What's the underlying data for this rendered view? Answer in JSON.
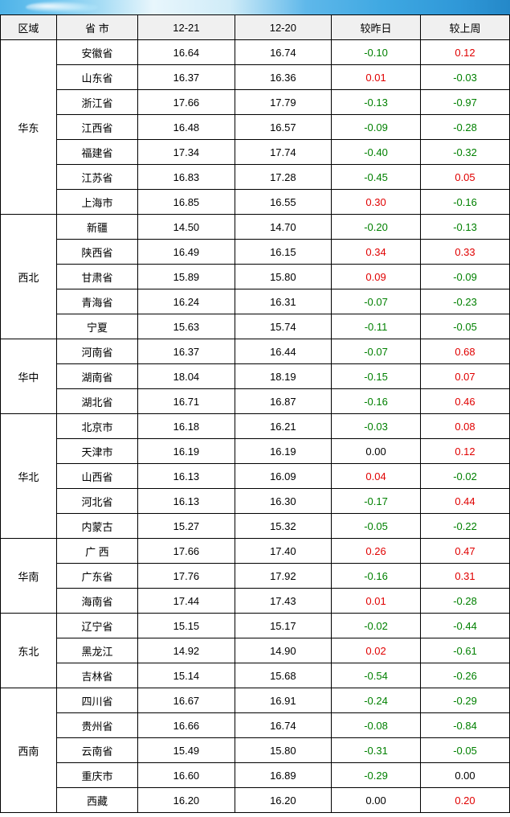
{
  "header_bg": "#f0f0f0",
  "border_color": "#000000",
  "neg_color": "#008000",
  "pos_color": "#e00000",
  "columns": [
    "区域",
    "省 市",
    "12-21",
    "12-20",
    "较昨日",
    "较上周"
  ],
  "regions": [
    {
      "name": "华东",
      "rows": [
        {
          "province": "安徽省",
          "d1": "16.64",
          "d2": "16.74",
          "delta_day": "-0.10",
          "delta_week": "0.12"
        },
        {
          "province": "山东省",
          "d1": "16.37",
          "d2": "16.36",
          "delta_day": "0.01",
          "delta_week": "-0.03"
        },
        {
          "province": "浙江省",
          "d1": "17.66",
          "d2": "17.79",
          "delta_day": "-0.13",
          "delta_week": "-0.97"
        },
        {
          "province": "江西省",
          "d1": "16.48",
          "d2": "16.57",
          "delta_day": "-0.09",
          "delta_week": "-0.28"
        },
        {
          "province": "福建省",
          "d1": "17.34",
          "d2": "17.74",
          "delta_day": "-0.40",
          "delta_week": "-0.32"
        },
        {
          "province": "江苏省",
          "d1": "16.83",
          "d2": "17.28",
          "delta_day": "-0.45",
          "delta_week": "0.05"
        },
        {
          "province": "上海市",
          "d1": "16.85",
          "d2": "16.55",
          "delta_day": "0.30",
          "delta_week": "-0.16"
        }
      ]
    },
    {
      "name": "西北",
      "rows": [
        {
          "province": "新疆",
          "d1": "14.50",
          "d2": "14.70",
          "delta_day": "-0.20",
          "delta_week": "-0.13"
        },
        {
          "province": "陕西省",
          "d1": "16.49",
          "d2": "16.15",
          "delta_day": "0.34",
          "delta_week": "0.33"
        },
        {
          "province": "甘肃省",
          "d1": "15.89",
          "d2": "15.80",
          "delta_day": "0.09",
          "delta_week": "-0.09"
        },
        {
          "province": "青海省",
          "d1": "16.24",
          "d2": "16.31",
          "delta_day": "-0.07",
          "delta_week": "-0.23"
        },
        {
          "province": "宁夏",
          "d1": "15.63",
          "d2": "15.74",
          "delta_day": "-0.11",
          "delta_week": "-0.05"
        }
      ]
    },
    {
      "name": "华中",
      "rows": [
        {
          "province": "河南省",
          "d1": "16.37",
          "d2": "16.44",
          "delta_day": "-0.07",
          "delta_week": "0.68"
        },
        {
          "province": "湖南省",
          "d1": "18.04",
          "d2": "18.19",
          "delta_day": "-0.15",
          "delta_week": "0.07"
        },
        {
          "province": "湖北省",
          "d1": "16.71",
          "d2": "16.87",
          "delta_day": "-0.16",
          "delta_week": "0.46"
        }
      ]
    },
    {
      "name": "华北",
      "rows": [
        {
          "province": "北京市",
          "d1": "16.18",
          "d2": "16.21",
          "delta_day": "-0.03",
          "delta_week": "0.08"
        },
        {
          "province": "天津市",
          "d1": "16.19",
          "d2": "16.19",
          "delta_day": "0.00",
          "delta_week": "0.12"
        },
        {
          "province": "山西省",
          "d1": "16.13",
          "d2": "16.09",
          "delta_day": "0.04",
          "delta_week": "-0.02"
        },
        {
          "province": "河北省",
          "d1": "16.13",
          "d2": "16.30",
          "delta_day": "-0.17",
          "delta_week": "0.44"
        },
        {
          "province": "内蒙古",
          "d1": "15.27",
          "d2": "15.32",
          "delta_day": "-0.05",
          "delta_week": "-0.22"
        }
      ]
    },
    {
      "name": "华南",
      "rows": [
        {
          "province": "广 西",
          "d1": "17.66",
          "d2": "17.40",
          "delta_day": "0.26",
          "delta_week": "0.47"
        },
        {
          "province": "广东省",
          "d1": "17.76",
          "d2": "17.92",
          "delta_day": "-0.16",
          "delta_week": "0.31"
        },
        {
          "province": "海南省",
          "d1": "17.44",
          "d2": "17.43",
          "delta_day": "0.01",
          "delta_week": "-0.28"
        }
      ]
    },
    {
      "name": "东北",
      "rows": [
        {
          "province": "辽宁省",
          "d1": "15.15",
          "d2": "15.17",
          "delta_day": "-0.02",
          "delta_week": "-0.44"
        },
        {
          "province": "黑龙江",
          "d1": "14.92",
          "d2": "14.90",
          "delta_day": "0.02",
          "delta_week": "-0.61"
        },
        {
          "province": "吉林省",
          "d1": "15.14",
          "d2": "15.68",
          "delta_day": "-0.54",
          "delta_week": "-0.26"
        }
      ]
    },
    {
      "name": "西南",
      "rows": [
        {
          "province": "四川省",
          "d1": "16.67",
          "d2": "16.91",
          "delta_day": "-0.24",
          "delta_week": "-0.29"
        },
        {
          "province": "贵州省",
          "d1": "16.66",
          "d2": "16.74",
          "delta_day": "-0.08",
          "delta_week": "-0.84"
        },
        {
          "province": "云南省",
          "d1": "15.49",
          "d2": "15.80",
          "delta_day": "-0.31",
          "delta_week": "-0.05"
        },
        {
          "province": "重庆市",
          "d1": "16.60",
          "d2": "16.89",
          "delta_day": "-0.29",
          "delta_week": "0.00"
        },
        {
          "province": "西藏",
          "d1": "16.20",
          "d2": "16.20",
          "delta_day": "0.00",
          "delta_week": "0.20"
        }
      ]
    }
  ]
}
